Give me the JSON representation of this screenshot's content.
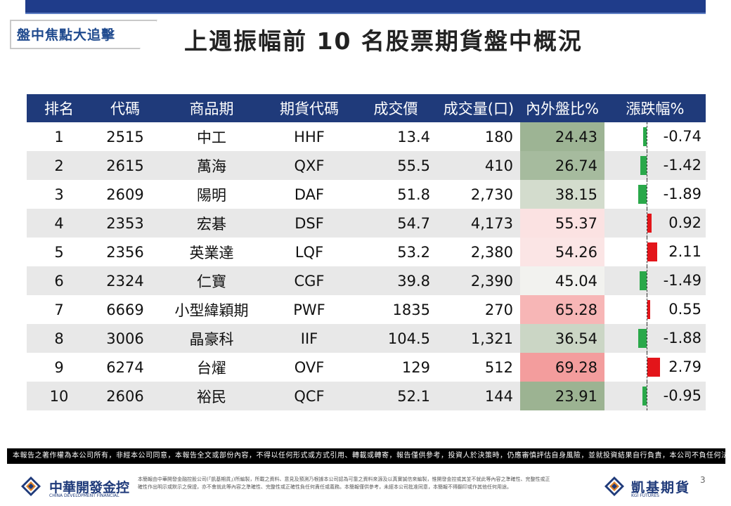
{
  "header": {
    "tag": "盤中焦點大追擊",
    "title": "上週振幅前 10 名股票期貨盤中概況"
  },
  "table": {
    "columns": [
      "排名",
      "代碼",
      "商品期",
      "期貨代碼",
      "成交價",
      "成交量(口)",
      "內外盤比%",
      "漲跌幅%"
    ],
    "rows": [
      {
        "rank": "1",
        "code": "2515",
        "name": "中工",
        "fut": "HHF",
        "price": "13.4",
        "volume": "180",
        "ratio": "24.43",
        "ratio_bg": "#9db494",
        "chg": "-0.74",
        "chg_val": -0.74
      },
      {
        "rank": "2",
        "code": "2615",
        "name": "萬海",
        "fut": "QXF",
        "price": "55.5",
        "volume": "410",
        "ratio": "26.74",
        "ratio_bg": "#a6bb9e",
        "chg": "-1.42",
        "chg_val": -1.42
      },
      {
        "rank": "3",
        "code": "2609",
        "name": "陽明",
        "fut": "DAF",
        "price": "51.8",
        "volume": "2,730",
        "ratio": "38.15",
        "ratio_bg": "#d3dccd",
        "chg": "-1.89",
        "chg_val": -1.89
      },
      {
        "rank": "4",
        "code": "2353",
        "name": "宏碁",
        "fut": "DSF",
        "price": "54.7",
        "volume": "4,173",
        "ratio": "55.37",
        "ratio_bg": "#fbe2e2",
        "chg": "0.92",
        "chg_val": 0.92
      },
      {
        "rank": "5",
        "code": "2356",
        "name": "英業達",
        "fut": "LQF",
        "price": "53.2",
        "volume": "2,380",
        "ratio": "54.26",
        "ratio_bg": "#fbe5e5",
        "chg": "2.11",
        "chg_val": 2.11
      },
      {
        "rank": "6",
        "code": "2324",
        "name": "仁寶",
        "fut": "CGF",
        "price": "39.8",
        "volume": "2,390",
        "ratio": "45.04",
        "ratio_bg": "#f2f2ef",
        "chg": "-1.49",
        "chg_val": -1.49
      },
      {
        "rank": "7",
        "code": "6669",
        "name": "小型緯穎期",
        "fut": "PWF",
        "price": "1835",
        "volume": "270",
        "ratio": "65.28",
        "ratio_bg": "#f7b6b6",
        "chg": "0.55",
        "chg_val": 0.55
      },
      {
        "rank": "8",
        "code": "3006",
        "name": "晶豪科",
        "fut": "IIF",
        "price": "104.5",
        "volume": "1,321",
        "ratio": "36.54",
        "ratio_bg": "#cbd6c5",
        "chg": "-1.88",
        "chg_val": -1.88
      },
      {
        "rank": "9",
        "code": "6274",
        "name": "台燿",
        "fut": "OVF",
        "price": "129",
        "volume": "512",
        "ratio": "69.28",
        "ratio_bg": "#f39d9d",
        "chg": "2.79",
        "chg_val": 2.79
      },
      {
        "rank": "10",
        "code": "2606",
        "name": "裕民",
        "fut": "QCF",
        "price": "52.1",
        "volume": "144",
        "ratio": "23.91",
        "ratio_bg": "#9cb392",
        "chg": "-0.95",
        "chg_val": -0.95
      }
    ],
    "colors": {
      "up": "#e3151a",
      "down": "#2aa84a",
      "header": "#1f3a7a"
    }
  },
  "footer": {
    "disclaimer": "本報告之著作權為本公司所有，非經本公司同意，本報告全文或部份內容，不得以任何形式或方式引用、轉載或轉寄，報告僅供參考，投資人於決策時，仍應審慎評估自身風險，並就投資結果自行負責，本公司不負任何法律責任",
    "logo_left_cn": "中華開發金控",
    "logo_left_en": "CHINA DEVELOPMENT FINANCIAL",
    "small_print": "本簡報由中華開發金融控股公司(「凱基期貨」)所編製，所載之資料、意見及預測乃根據本公司認為可靠之資料來源及以真實誠信來編製，惟開發金控或其並不就此等內容之準確性、完整性或正確性作出明示或默示之保證，亦不會就此等內容之準確性、完整性或正確性負任何責任或義務。本簡報僅供參考，未經本公司批准同意，本簡報不得翻印或作其他任何用途。",
    "logo_right_cn": "凱基期貨",
    "logo_right_en": "KGI FUTURES",
    "page": "3"
  }
}
